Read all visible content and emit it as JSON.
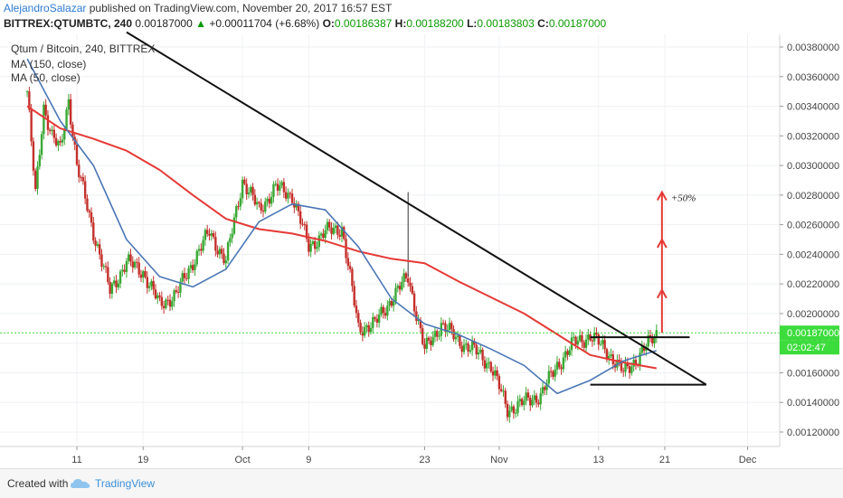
{
  "header": {
    "author": "AlejandroSalazar",
    "published": "published on TradingView.com, November 20, 2017 16:57 EST",
    "symbol": "BITTREX:QTUMBTC, 240",
    "last": "0.00187000",
    "change": "+0.00011704 (+6.68%)",
    "o_label": "O:",
    "o_value": "0.00186387",
    "h_label": "H:",
    "h_value": "0.00188200",
    "l_label": "L:",
    "l_value": "0.00183803",
    "c_label": "C:",
    "c_value": "0.00187000"
  },
  "legend": {
    "title": "Qtum / Bitcoin, 240, BITTREX",
    "ma150": "MA (150, close)",
    "ma50": "MA (50, close)"
  },
  "footer": {
    "created_with": "Created with",
    "brand": "TradingView"
  },
  "colors": {
    "up": "#3aa935",
    "down": "#c4302b",
    "ma150": "#e53935",
    "ma50": "#4a76b5",
    "trendline": "#111111",
    "target": "#e53935",
    "price_marker": "#3cdc3c"
  },
  "chart_data": {
    "type": "candlestick",
    "title": "Qtum / Bitcoin, 240, BITTREX",
    "x_ticks": [
      "11",
      "19",
      "Oct",
      "9",
      "23",
      "Nov",
      "13",
      "21",
      "Dec"
    ],
    "y_ticks": [
      "0.00120000",
      "0.00140000",
      "0.00160000",
      "0.00180000",
      "0.00200000",
      "0.00220000",
      "0.00240000",
      "0.00260000",
      "0.00280000",
      "0.00300000",
      "0.00320000",
      "0.00340000",
      "0.00360000",
      "0.00380000"
    ],
    "ylim": [
      0.0011,
      0.00392
    ],
    "last_price": "0.00187000",
    "countdown": "02:02:47",
    "annotation": "+50%",
    "price_path": [
      [
        "Sep 5",
        0.0035
      ],
      [
        "Sep 6",
        0.0028
      ],
      [
        "Sep 7",
        0.0034
      ],
      [
        "Sep 8",
        0.0032
      ],
      [
        "Sep 9",
        0.0031
      ],
      [
        "Sep 10",
        0.00345
      ],
      [
        "Sep 11",
        0.003
      ],
      [
        "Sep 13",
        0.00255
      ],
      [
        "Sep 15",
        0.00215
      ],
      [
        "Sep 17",
        0.00235
      ],
      [
        "Sep 19",
        0.00228
      ],
      [
        "Sep 21",
        0.00206
      ],
      [
        "Sep 23",
        0.00213
      ],
      [
        "Sep 25",
        0.00235
      ],
      [
        "Sep 27",
        0.00255
      ],
      [
        "Sep 29",
        0.00235
      ],
      [
        "Oct 1",
        0.0029
      ],
      [
        "Oct 3",
        0.0027
      ],
      [
        "Oct 5",
        0.00285
      ],
      [
        "Oct 7",
        0.0028
      ],
      [
        "Oct 9",
        0.00245
      ],
      [
        "Oct 11",
        0.00255
      ],
      [
        "Oct 13",
        0.00258
      ],
      [
        "Oct 15",
        0.0019
      ],
      [
        "Oct 17",
        0.00193
      ],
      [
        "Oct 19",
        0.0021
      ],
      [
        "Oct 21",
        0.00225
      ],
      [
        "Oct 23",
        0.00175
      ],
      [
        "Oct 25",
        0.00193
      ],
      [
        "Oct 27",
        0.00182
      ],
      [
        "Oct 29",
        0.00175
      ],
      [
        "Oct 31",
        0.00165
      ],
      [
        "Nov 2",
        0.00135
      ],
      [
        "Nov 4",
        0.0014
      ],
      [
        "Nov 6",
        0.00145
      ],
      [
        "Nov 8",
        0.00165
      ],
      [
        "Nov 10",
        0.0018
      ],
      [
        "Nov 12",
        0.00185
      ],
      [
        "Nov 14",
        0.00175
      ],
      [
        "Nov 16",
        0.0016
      ],
      [
        "Nov 18",
        0.00172
      ],
      [
        "Nov 20",
        0.00187
      ]
    ],
    "spike": {
      "date": "Oct 21",
      "high": 0.00282
    },
    "ma150": [
      [
        "Sep 5",
        0.0034
      ],
      [
        "Sep 9",
        0.00325
      ],
      [
        "Sep 13",
        0.00318
      ],
      [
        "Sep 17",
        0.0031
      ],
      [
        "Sep 21",
        0.00297
      ],
      [
        "Sep 25",
        0.0028
      ],
      [
        "Sep 29",
        0.00264
      ],
      [
        "Oct 3",
        0.00257
      ],
      [
        "Oct 7",
        0.00254
      ],
      [
        "Oct 11",
        0.00249
      ],
      [
        "Oct 15",
        0.00242
      ],
      [
        "Oct 19",
        0.00237
      ],
      [
        "Oct 23",
        0.00234
      ],
      [
        "Oct 27",
        0.00222
      ],
      [
        "Oct 31",
        0.00211
      ],
      [
        "Nov 4",
        0.002
      ],
      [
        "Nov 8",
        0.00186
      ],
      [
        "Nov 12",
        0.00172
      ],
      [
        "Nov 16",
        0.00167
      ],
      [
        "Nov 20",
        0.00163
      ]
    ],
    "ma50": [
      [
        "Sep 5",
        0.00372
      ],
      [
        "Sep 9",
        0.0033
      ],
      [
        "Sep 13",
        0.003
      ],
      [
        "Sep 17",
        0.0025
      ],
      [
        "Sep 21",
        0.00225
      ],
      [
        "Sep 25",
        0.00218
      ],
      [
        "Sep 29",
        0.0023
      ],
      [
        "Oct 3",
        0.00262
      ],
      [
        "Oct 7",
        0.00274
      ],
      [
        "Oct 11",
        0.0027
      ],
      [
        "Oct 15",
        0.00245
      ],
      [
        "Oct 19",
        0.0021
      ],
      [
        "Oct 23",
        0.00193
      ],
      [
        "Oct 27",
        0.00186
      ],
      [
        "Oct 31",
        0.00176
      ],
      [
        "Nov 4",
        0.00165
      ],
      [
        "Nov 8",
        0.00146
      ],
      [
        "Nov 12",
        0.00155
      ],
      [
        "Nov 16",
        0.00168
      ],
      [
        "Nov 20",
        0.00175
      ]
    ],
    "trendline": {
      "from": [
        "Sep 17",
        0.0039
      ],
      "to": [
        "Nov 26",
        0.00152
      ]
    },
    "channel_top": {
      "from": [
        "Nov 12",
        0.00184
      ],
      "to": [
        "Nov 24",
        0.00184
      ]
    },
    "channel_bottom": {
      "from": [
        "Nov 12",
        0.00152
      ],
      "to": [
        "Nov 26",
        0.00152
      ]
    },
    "target_arrows": [
      0.00216,
      0.0025,
      0.00282
    ]
  }
}
